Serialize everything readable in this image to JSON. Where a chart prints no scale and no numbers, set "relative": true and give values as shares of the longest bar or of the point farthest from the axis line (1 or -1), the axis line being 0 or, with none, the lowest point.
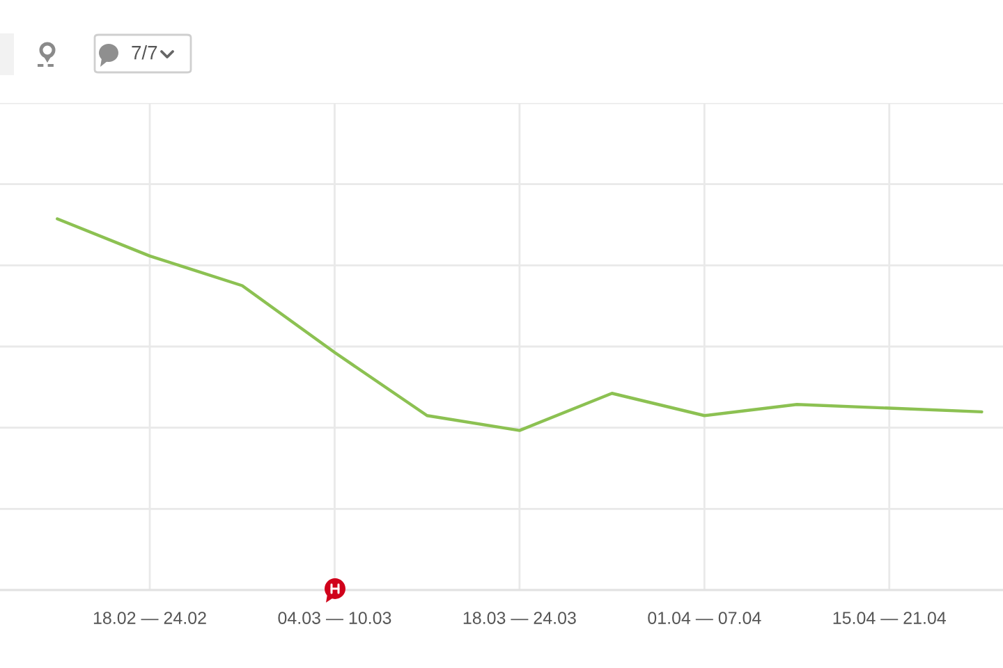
{
  "chart_data": {
    "type": "line",
    "relative": true,
    "categories": [
      null,
      "18.02 — 24.02",
      null,
      "04.03 — 10.03",
      null,
      "18.03 — 24.03",
      null,
      "01.04 — 07.04",
      null,
      "15.04 — 21.04",
      null
    ],
    "series": [
      {
        "color": "#8cc152",
        "values": [
          1,
          0.9,
          0.82,
          0.64,
          0.47,
          0.43,
          0.53,
          0.47,
          0.5,
          0.49,
          0.48
        ]
      }
    ],
    "grid": true,
    "annotations": [
      "7/7"
    ]
  }
}
